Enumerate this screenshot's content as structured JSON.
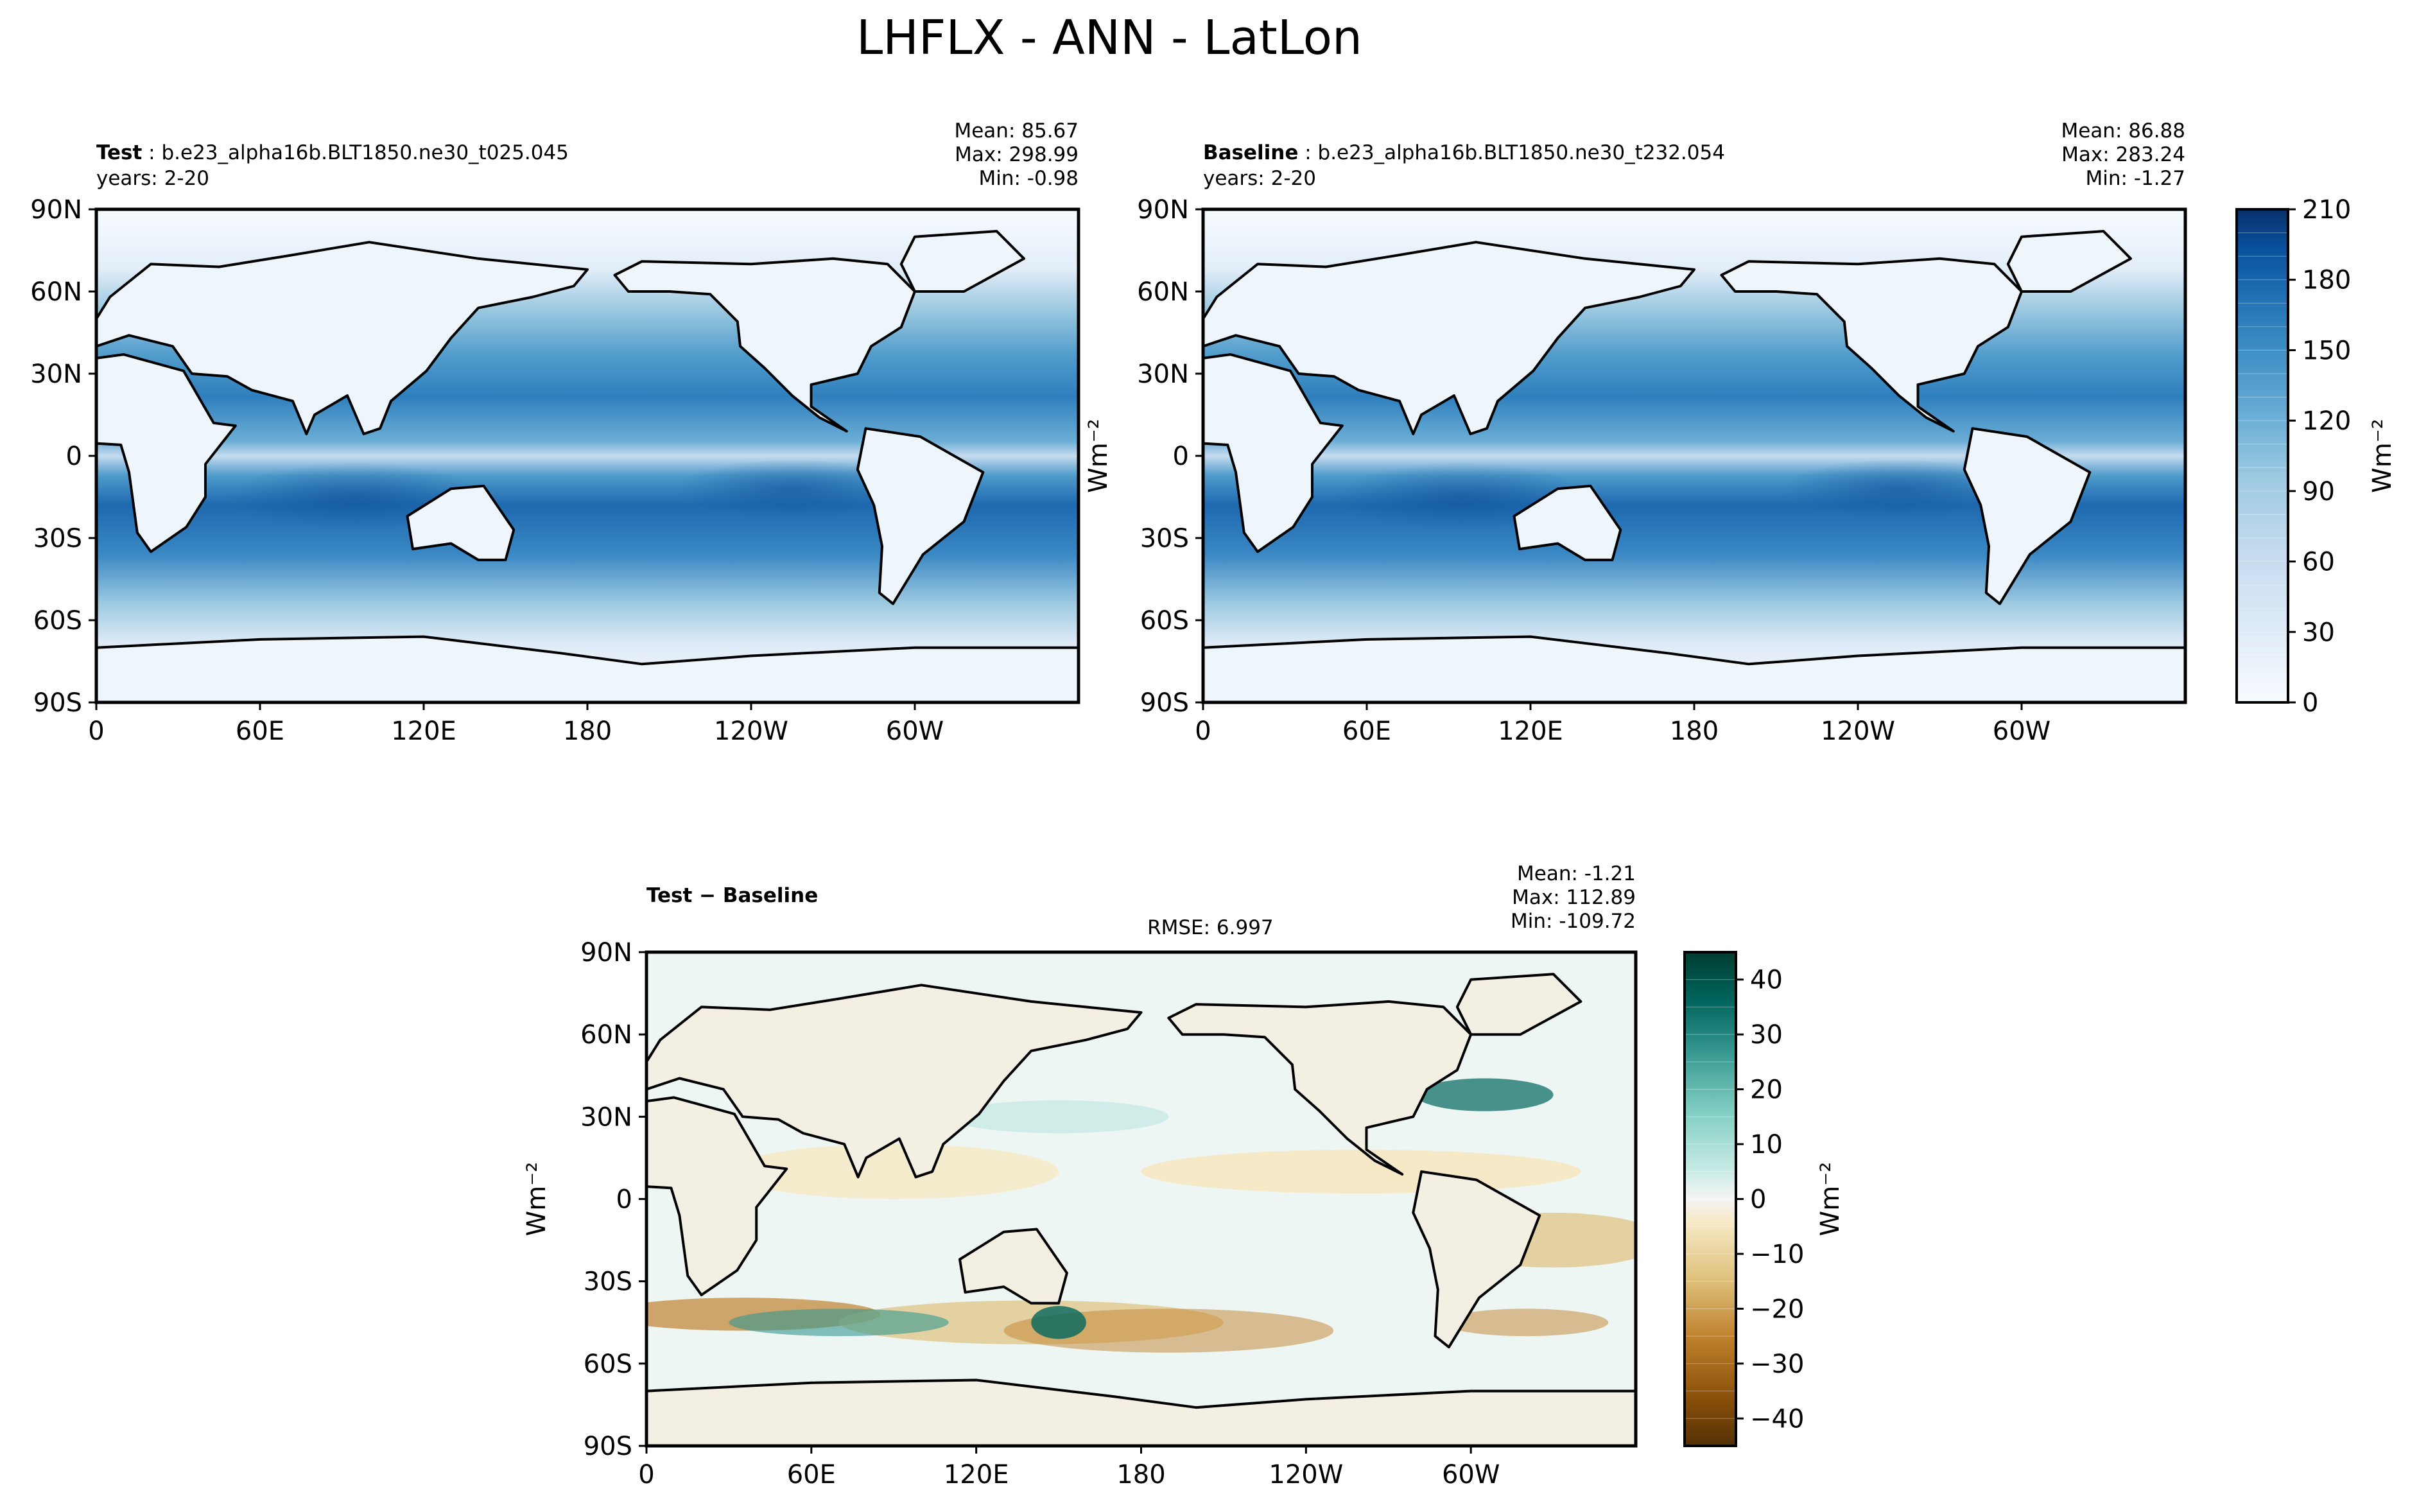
{
  "figure_title": "LHFLX - ANN - LatLon",
  "chart_data": [
    {
      "type": "heatmap",
      "panel": "test",
      "label": "Test",
      "case": "b.e23_alpha16b.BLT1850.ne30_t025.045",
      "years": "years: 2-20",
      "stats": {
        "mean": "Mean: 85.67",
        "max": "Max: 298.99",
        "min": "Min: -0.98"
      },
      "xticks": [
        "0",
        "60E",
        "120E",
        "180",
        "120W",
        "60W"
      ],
      "yticks": [
        "90N",
        "60N",
        "30N",
        "0",
        "30S",
        "60S",
        "90S"
      ],
      "xlim": [
        0,
        360
      ],
      "ylim": [
        -90,
        90
      ],
      "colorbar": "shared-sequential"
    },
    {
      "type": "heatmap",
      "panel": "baseline",
      "label": "Baseline",
      "case": "b.e23_alpha16b.BLT1850.ne30_t232.054",
      "years": "years: 2-20",
      "stats": {
        "mean": "Mean: 86.88",
        "max": "Max: 283.24",
        "min": "Min: -1.27"
      },
      "xticks": [
        "0",
        "60E",
        "120E",
        "180",
        "120W",
        "60W"
      ],
      "yticks": [
        "90N",
        "60N",
        "30N",
        "0",
        "30S",
        "60S",
        "90S"
      ],
      "xlim": [
        0,
        360
      ],
      "ylim": [
        -90,
        90
      ],
      "ylabel": "Wm⁻²",
      "colorbar": {
        "label": "Wm⁻²",
        "ticks": [
          "210",
          "180",
          "150",
          "120",
          "90",
          "60",
          "30",
          "0"
        ],
        "range": [
          0,
          210
        ],
        "colors": [
          "#f7fbff",
          "#deebf7",
          "#c6dbef",
          "#9ecae1",
          "#6baed6",
          "#4292c6",
          "#2171b5",
          "#08519c",
          "#08306b"
        ]
      }
    },
    {
      "type": "heatmap",
      "panel": "difference",
      "label": "Test − Baseline",
      "rmse": "RMSE: 6.997",
      "stats": {
        "mean": "Mean: -1.21",
        "max": "Max: 112.89",
        "min": "Min: -109.72"
      },
      "xticks": [
        "0",
        "60E",
        "120E",
        "180",
        "120W",
        "60W"
      ],
      "yticks": [
        "90N",
        "60N",
        "30N",
        "0",
        "30S",
        "60S",
        "90S"
      ],
      "xlim": [
        0,
        360
      ],
      "ylim": [
        -90,
        90
      ],
      "ylabel": "Wm⁻²",
      "colorbar": {
        "label": "Wm⁻²",
        "ticks": [
          "40",
          "30",
          "20",
          "10",
          "0",
          "−10",
          "−20",
          "−30",
          "−40"
        ],
        "range": [
          -45,
          45
        ],
        "colors": [
          "#543005",
          "#8c510a",
          "#bf812d",
          "#dfc27d",
          "#f6e8c3",
          "#f5f5f5",
          "#c7eae5",
          "#80cdc1",
          "#35978f",
          "#01665e",
          "#003c30"
        ]
      }
    }
  ]
}
